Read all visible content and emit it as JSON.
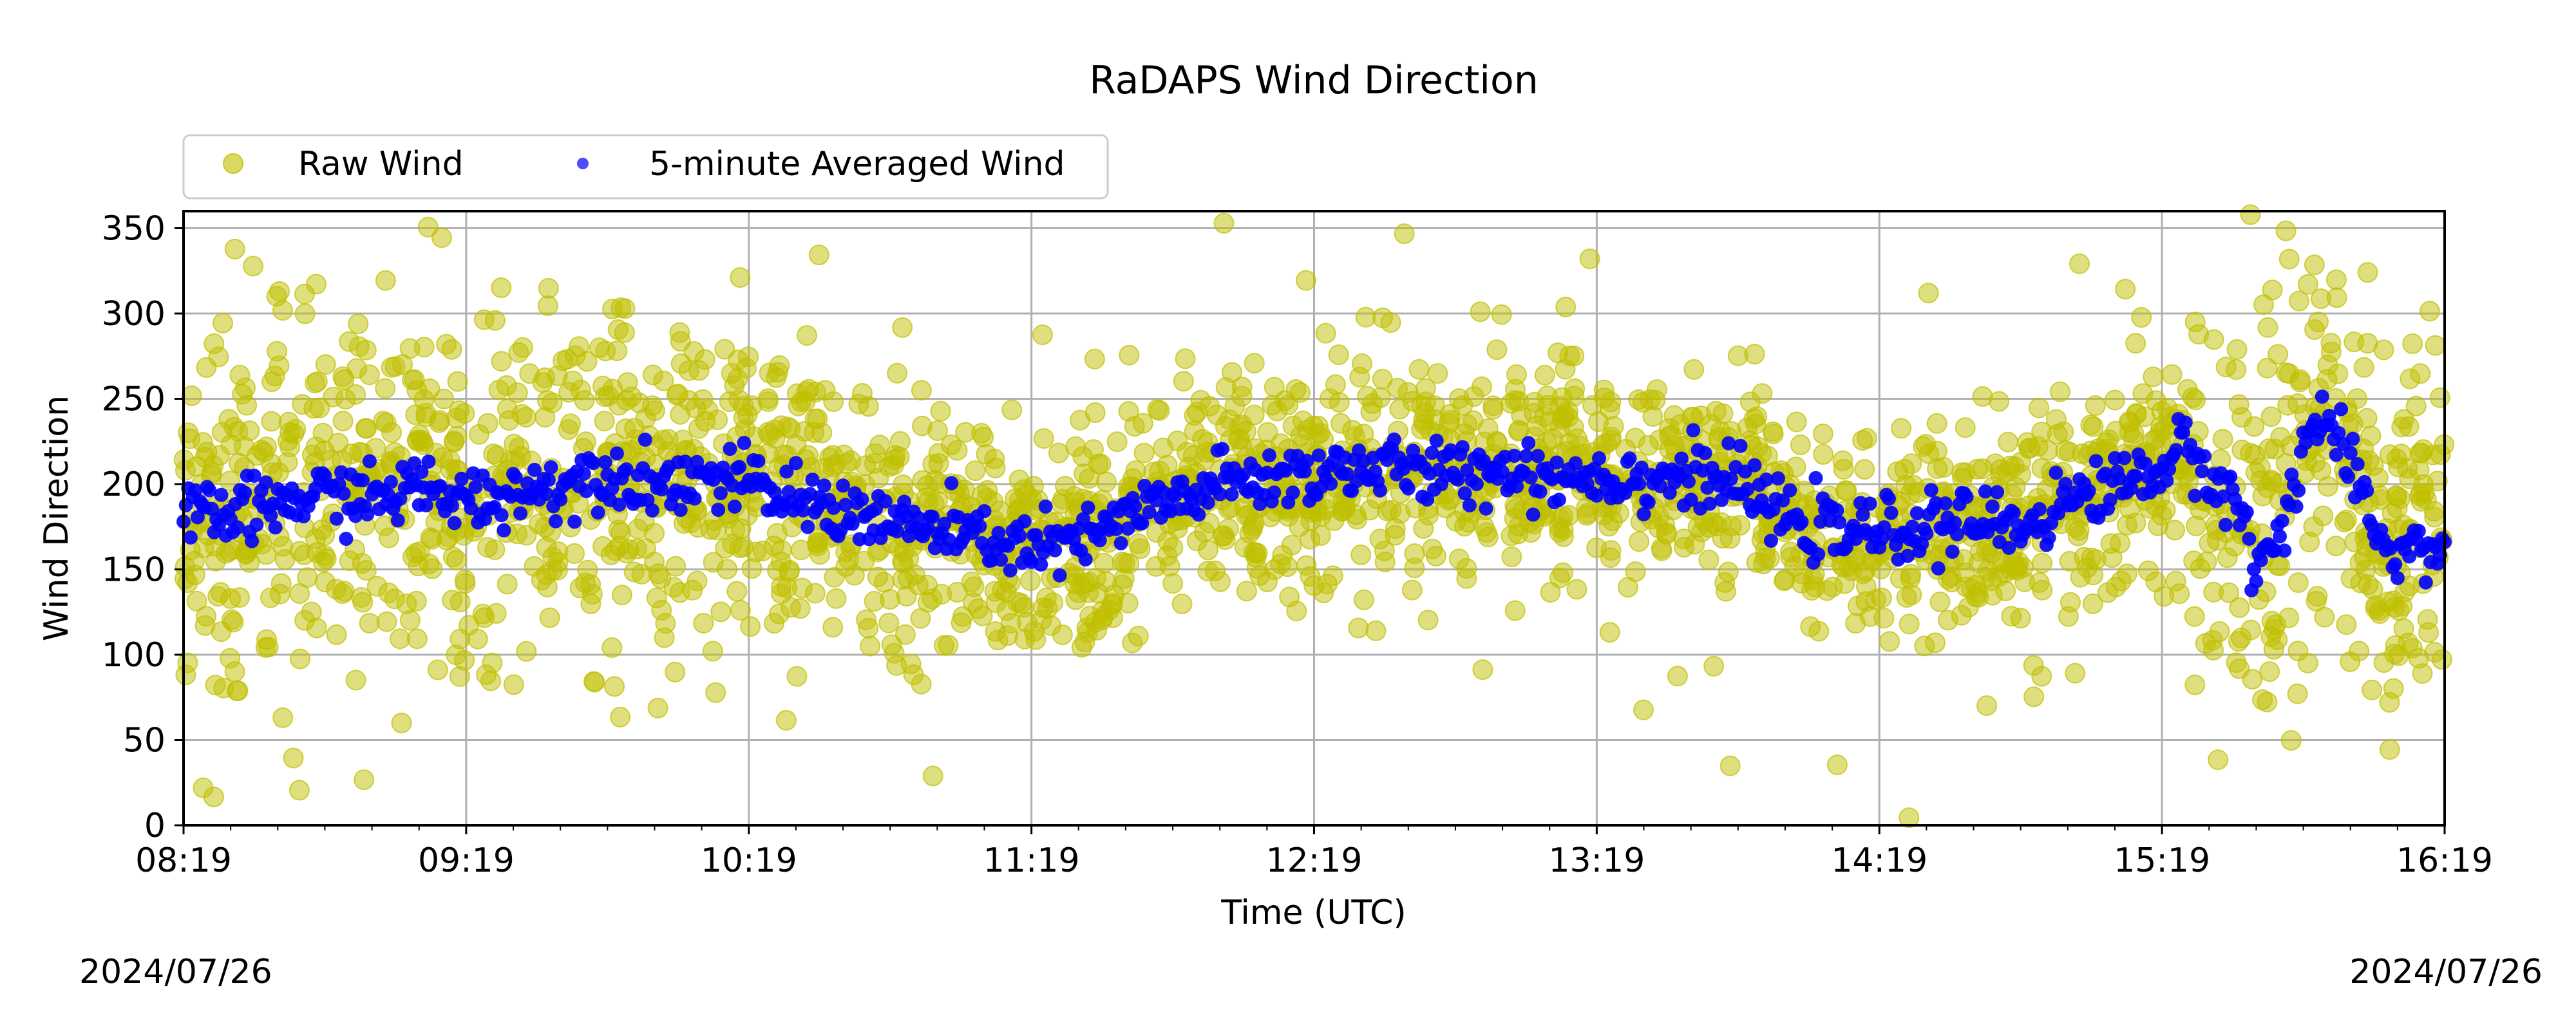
{
  "chart_data": {
    "type": "scatter",
    "title": "RaDAPS Wind Direction",
    "xlabel": "Time (UTC)",
    "ylabel": "Wind Direction",
    "x_range_minutes_since_start": [
      0,
      480
    ],
    "x_ticks": [
      "08:19",
      "09:19",
      "10:19",
      "11:19",
      "12:19",
      "13:19",
      "14:19",
      "15:19",
      "16:19"
    ],
    "ylim": [
      0,
      360
    ],
    "y_ticks": [
      0,
      50,
      100,
      150,
      200,
      250,
      300,
      350
    ],
    "grid": true,
    "legend": {
      "placement": "top-left-outside",
      "columns": 2
    },
    "date_start": "2024/07/26",
    "date_end": "2024/07/26",
    "series": [
      {
        "name": "Raw Wind",
        "color": "#bfbf00",
        "marker": "circle-large",
        "opacity": 0.55,
        "description": "dense cloud of raw samples; center follows averaged curve",
        "spread_profile": [
          {
            "t": 0,
            "spread": 85
          },
          {
            "t": 60,
            "spread": 95
          },
          {
            "t": 120,
            "spread": 80
          },
          {
            "t": 180,
            "spread": 55
          },
          {
            "t": 240,
            "spread": 60
          },
          {
            "t": 300,
            "spread": 50
          },
          {
            "t": 360,
            "spread": 45
          },
          {
            "t": 420,
            "spread": 60
          },
          {
            "t": 440,
            "spread": 110
          },
          {
            "t": 480,
            "spread": 90
          }
        ]
      },
      {
        "name": "5-minute Averaged Wind",
        "color": "#0000ff",
        "marker": "circle-small",
        "opacity": 0.7,
        "points": [
          {
            "t": 0,
            "v": 180
          },
          {
            "t": 10,
            "v": 182
          },
          {
            "t": 20,
            "v": 188
          },
          {
            "t": 30,
            "v": 195
          },
          {
            "t": 40,
            "v": 192
          },
          {
            "t": 50,
            "v": 198
          },
          {
            "t": 60,
            "v": 190
          },
          {
            "t": 70,
            "v": 195
          },
          {
            "t": 80,
            "v": 200
          },
          {
            "t": 90,
            "v": 208
          },
          {
            "t": 100,
            "v": 200
          },
          {
            "t": 110,
            "v": 205
          },
          {
            "t": 120,
            "v": 200
          },
          {
            "t": 130,
            "v": 190
          },
          {
            "t": 140,
            "v": 185
          },
          {
            "t": 150,
            "v": 178
          },
          {
            "t": 160,
            "v": 172
          },
          {
            "t": 170,
            "v": 168
          },
          {
            "t": 180,
            "v": 163
          },
          {
            "t": 190,
            "v": 165
          },
          {
            "t": 200,
            "v": 180
          },
          {
            "t": 210,
            "v": 190
          },
          {
            "t": 220,
            "v": 200
          },
          {
            "t": 230,
            "v": 203
          },
          {
            "t": 240,
            "v": 207
          },
          {
            "t": 250,
            "v": 210
          },
          {
            "t": 260,
            "v": 208
          },
          {
            "t": 270,
            "v": 205
          },
          {
            "t": 280,
            "v": 210
          },
          {
            "t": 290,
            "v": 205
          },
          {
            "t": 300,
            "v": 205
          },
          {
            "t": 310,
            "v": 203
          },
          {
            "t": 320,
            "v": 205
          },
          {
            "t": 330,
            "v": 200
          },
          {
            "t": 340,
            "v": 180
          },
          {
            "t": 350,
            "v": 172
          },
          {
            "t": 360,
            "v": 172
          },
          {
            "t": 370,
            "v": 175
          },
          {
            "t": 380,
            "v": 178
          },
          {
            "t": 390,
            "v": 175
          },
          {
            "t": 400,
            "v": 190
          },
          {
            "t": 410,
            "v": 200
          },
          {
            "t": 420,
            "v": 210
          },
          {
            "t": 425,
            "v": 220
          },
          {
            "t": 430,
            "v": 205
          },
          {
            "t": 435,
            "v": 195
          },
          {
            "t": 440,
            "v": 150
          },
          {
            "t": 445,
            "v": 170
          },
          {
            "t": 450,
            "v": 225
          },
          {
            "t": 455,
            "v": 240
          },
          {
            "t": 460,
            "v": 205
          },
          {
            "t": 465,
            "v": 175
          },
          {
            "t": 470,
            "v": 158
          },
          {
            "t": 475,
            "v": 165
          },
          {
            "t": 480,
            "v": 160
          }
        ]
      }
    ]
  }
}
